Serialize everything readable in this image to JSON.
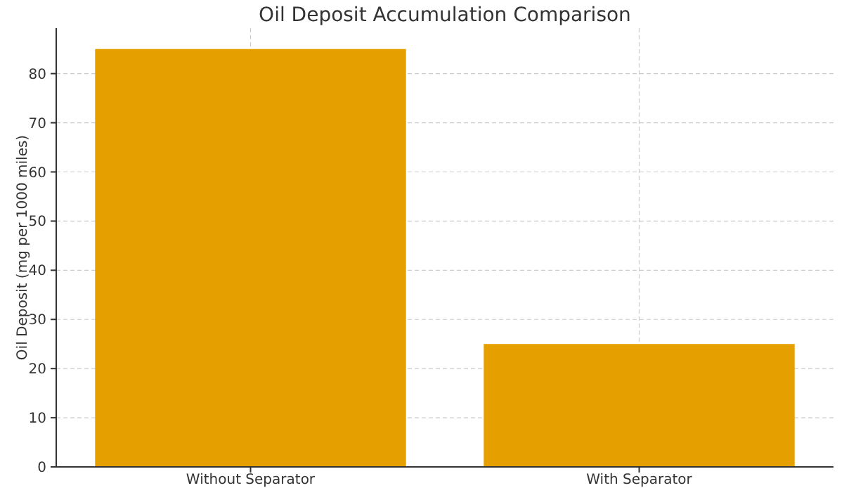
{
  "chart_data": {
    "type": "bar",
    "title": "Oil Deposit Accumulation Comparison",
    "ylabel": "Oil Deposit (mg per 1000 miles)",
    "categories": [
      "Without Separator",
      "With Separator"
    ],
    "values": [
      85,
      25
    ],
    "color": "#e5a000",
    "ylim": [
      0,
      89.25
    ],
    "yticks": [
      0,
      10,
      20,
      30,
      40,
      50,
      60,
      70,
      80
    ],
    "grid": true
  }
}
